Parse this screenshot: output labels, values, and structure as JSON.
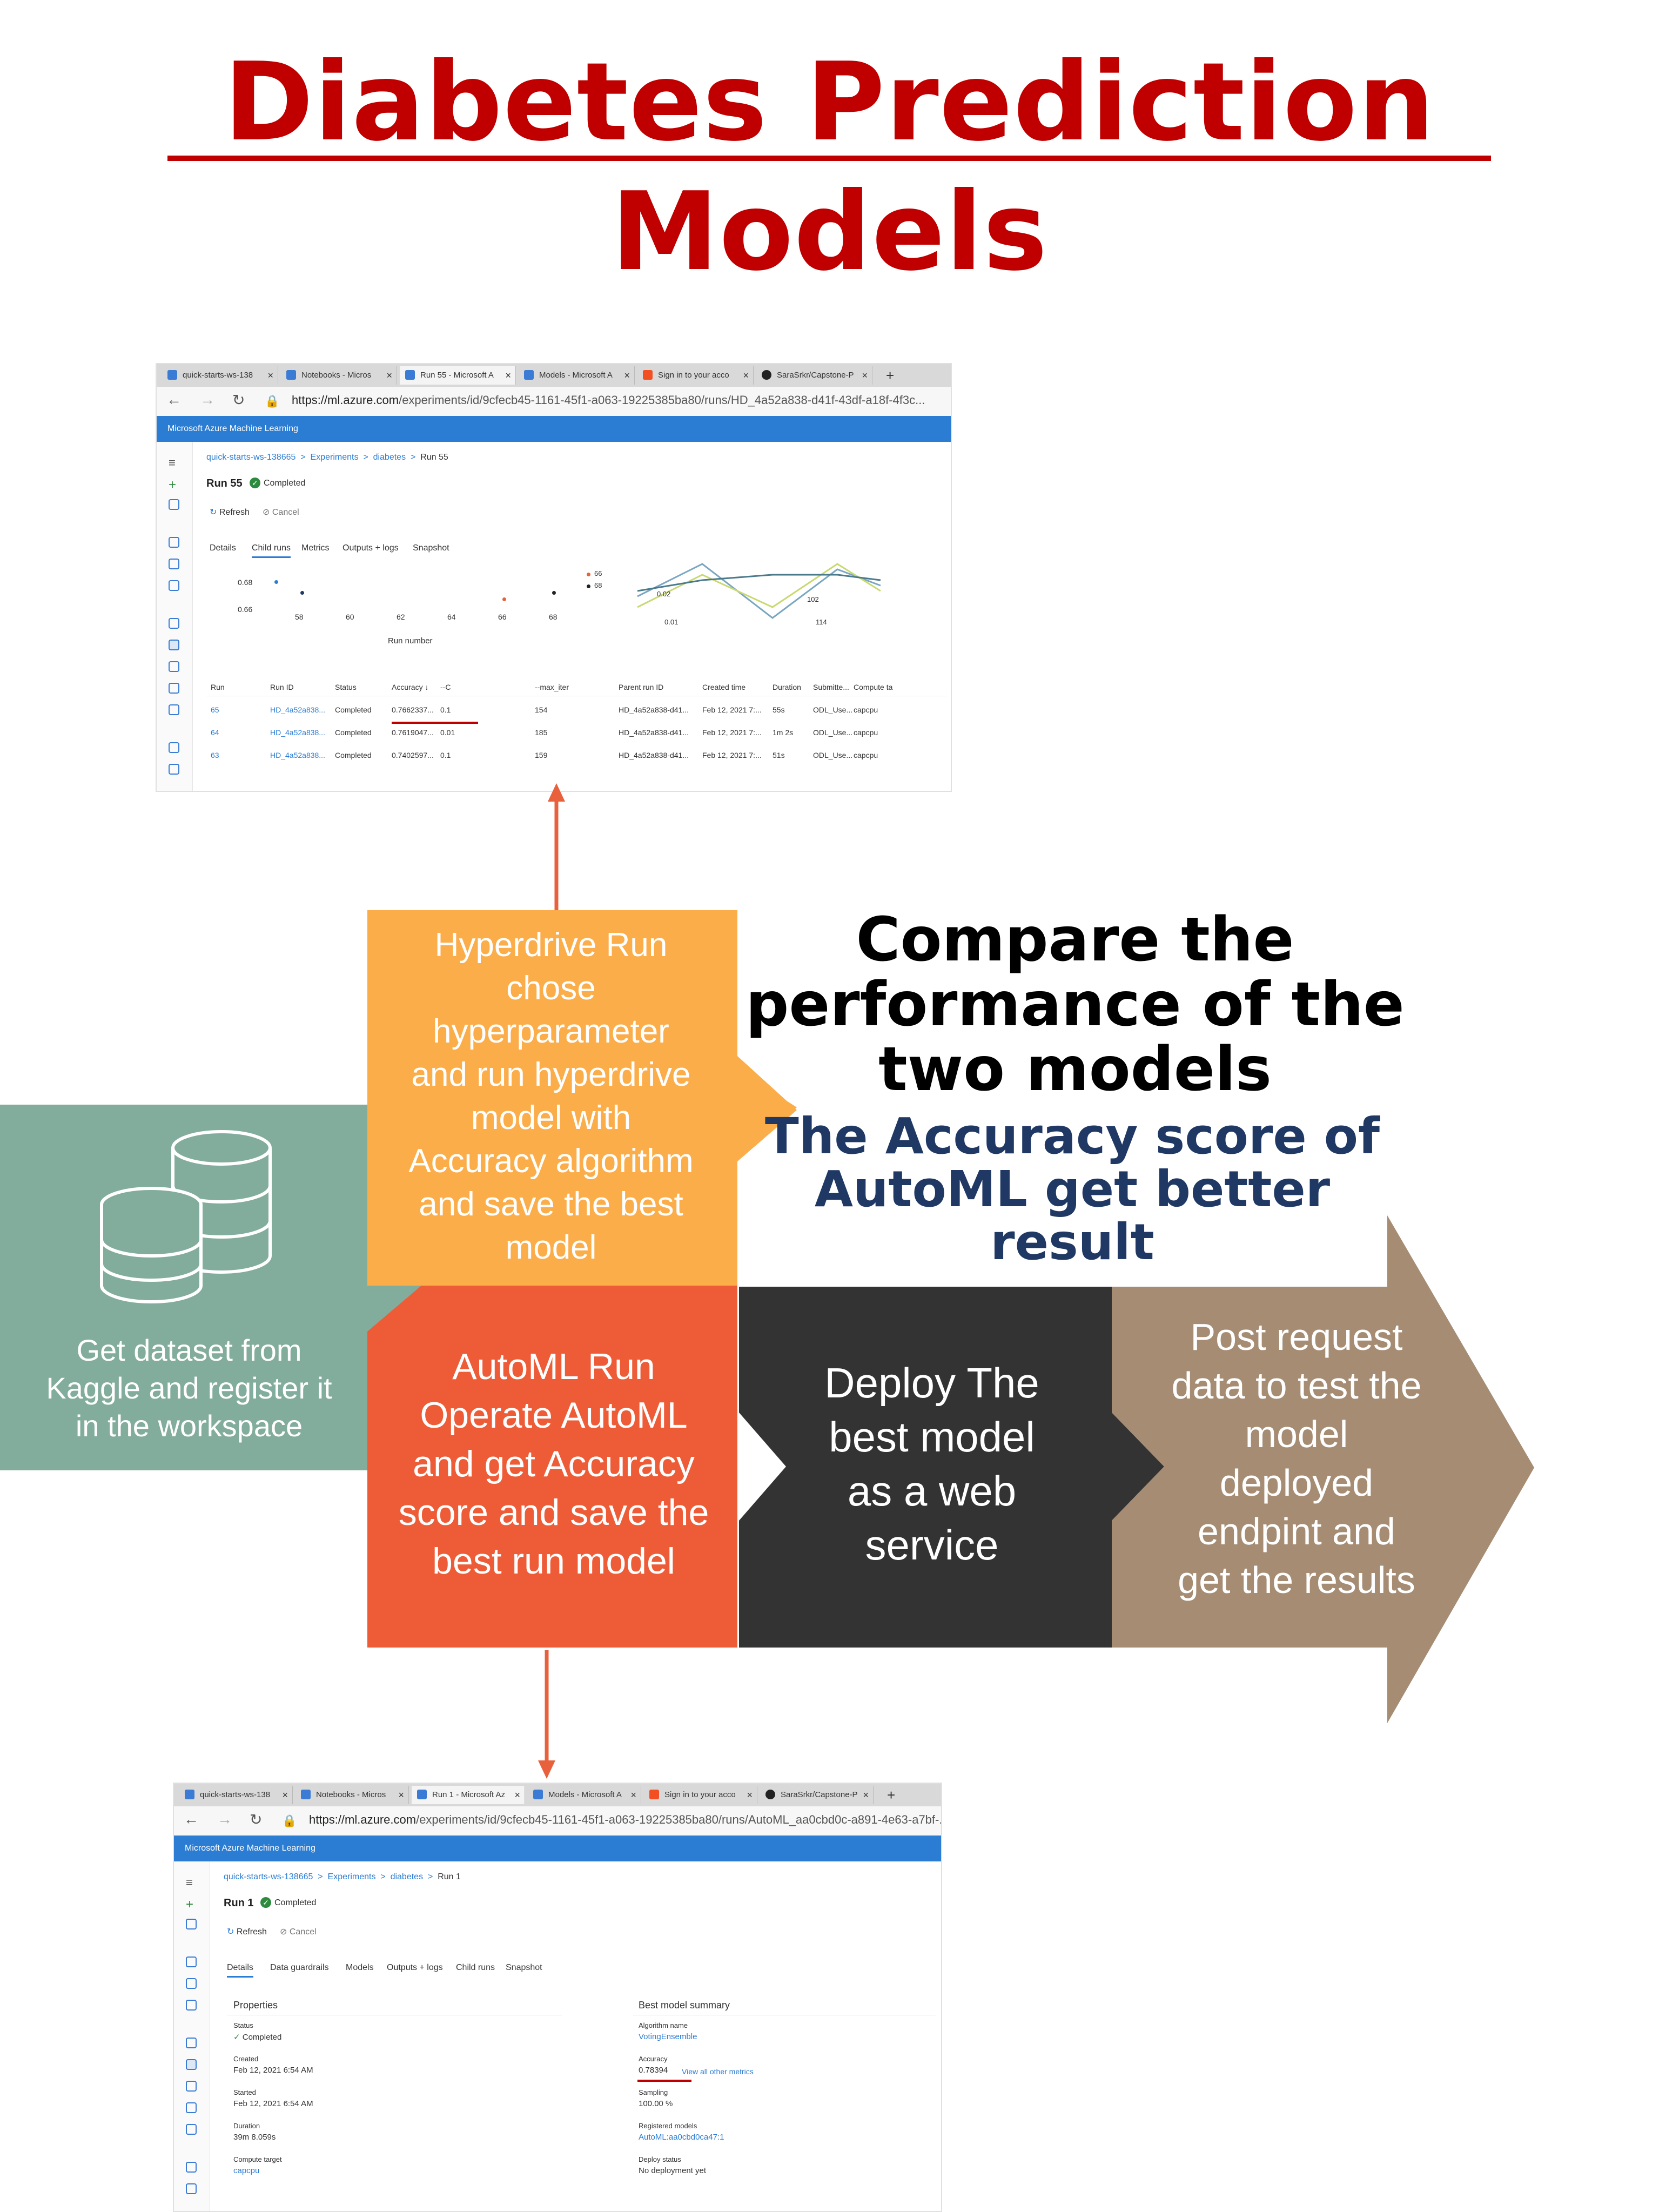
{
  "title": "Diabetes Prediction Models",
  "screenshot_top": {
    "tabs": [
      "quick-starts-ws-138",
      "Notebooks - Micros",
      "Run 55 - Microsoft A",
      "Models - Microsoft A",
      "Sign in to your acco",
      "SaraSrkr/Capstone-P"
    ],
    "url_host": "https://ml.azure.com",
    "url_path": "/experiments/id/9cfecb45-1161-45f1-a063-19225385ba80/runs/HD_4a52a838-d41f-43df-a18f-4f3c...",
    "app_name": "Microsoft Azure Machine Learning",
    "breadcrumb": [
      "quick-starts-ws-138665",
      "Experiments",
      "diabetes",
      "Run 55"
    ],
    "run_title": "Run 55",
    "status": "Completed",
    "refresh": "Refresh",
    "cancel": "Cancel",
    "subtabs": [
      "Details",
      "Child runs",
      "Metrics",
      "Outputs + logs",
      "Snapshot"
    ],
    "chart_yticks": [
      "0.68",
      "0.66"
    ],
    "chart_xticks": [
      "58",
      "60",
      "62",
      "64",
      "66",
      "68"
    ],
    "chart_xlabel": "Run number",
    "legend": [
      "66",
      "68"
    ],
    "line_ticks": [
      "0.02",
      "0.01",
      "114",
      "102"
    ],
    "columns": [
      "Run",
      "Run ID",
      "Status",
      "Accuracy ↓",
      "--C",
      "--max_iter",
      "Parent run ID",
      "Created time",
      "Duration",
      "Submitte...",
      "Compute ta"
    ],
    "rows": [
      [
        "65",
        "HD_4a52a838...",
        "Completed",
        "0.7662337...",
        "0.1",
        "154",
        "HD_4a52a838-d41...",
        "Feb 12, 2021 7:...",
        "55s",
        "ODL_Use...",
        "capcpu"
      ],
      [
        "64",
        "HD_4a52a838...",
        "Completed",
        "0.7619047...",
        "0.01",
        "185",
        "HD_4a52a838-d41...",
        "Feb 12, 2021 7:...",
        "1m 2s",
        "ODL_Use...",
        "capcpu"
      ],
      [
        "63",
        "HD_4a52a838...",
        "Completed",
        "0.7402597...",
        "0.1",
        "159",
        "HD_4a52a838-d41...",
        "Feb 12, 2021 7:...",
        "51s",
        "ODL_Use...",
        "capcpu"
      ]
    ]
  },
  "screenshot_bottom": {
    "tabs": [
      "quick-starts-ws-138",
      "Notebooks - Micros",
      "Run 1 - Microsoft Az",
      "Models - Microsoft A",
      "Sign in to your acco",
      "SaraSrkr/Capstone-P"
    ],
    "url_host": "https://ml.azure.com",
    "url_path": "/experiments/id/9cfecb45-1161-45f1-a063-19225385ba80/runs/AutoML_aa0cbd0c-a891-4e63-a7bf-...",
    "app_name": "Microsoft Azure Machine Learning",
    "breadcrumb": [
      "quick-starts-ws-138665",
      "Experiments",
      "diabetes",
      "Run 1"
    ],
    "run_title": "Run 1",
    "status": "Completed",
    "refresh": "Refresh",
    "cancel": "Cancel",
    "subtabs": [
      "Details",
      "Data guardrails",
      "Models",
      "Outputs + logs",
      "Child runs",
      "Snapshot"
    ],
    "properties_title": "Properties",
    "properties": [
      {
        "label": "Status",
        "value": "Completed"
      },
      {
        "label": "Created",
        "value": "Feb 12, 2021 6:54 AM"
      },
      {
        "label": "Started",
        "value": "Feb 12, 2021 6:54 AM"
      },
      {
        "label": "Duration",
        "value": "39m 8.059s"
      },
      {
        "label": "Compute target",
        "value": "capcpu"
      }
    ],
    "summary_title": "Best model summary",
    "summary": [
      {
        "label": "Algorithm name",
        "value": "VotingEnsemble"
      },
      {
        "label": "Accuracy",
        "value": "0.78394"
      },
      {
        "label": "Sampling",
        "value": "100.00 %"
      },
      {
        "label": "Registered models",
        "value": "AutoML:aa0cbd0ca47:1"
      },
      {
        "label": "Deploy status",
        "value": "No deployment yet"
      }
    ],
    "view_metrics": "View all other metrics"
  },
  "diagram": {
    "dataset": "Get dataset from\nKaggle and register it\nin the workspace",
    "hyperdrive": "Hyperdrive Run\nchose\nhyperparameter\nand run hyperdrive\nmodel with\nAccuracy algorithm\nand save the best\nmodel",
    "automl": "AutoML Run\nOperate AutoML\nand get Accuracy\nscore and save the\nbest run model",
    "deploy": "Deploy The\nbest model\nas a web\nservice",
    "post": "Post request\ndata to test the\nmodel\ndeployed\nendpint and\nget the results",
    "compare": "Compare the\nperformance of the\ntwo models",
    "conclusion": "The Accuracy score of\nAutoML get better result"
  },
  "colors": {
    "title": "#c00000",
    "dataset": "#82ac9b",
    "hyperdrive": "#fbad4a",
    "automl": "#ee5c37",
    "deploy": "#333333",
    "post": "#a58c73",
    "conclusion": "#1f3864",
    "arrow": "#e8603c"
  }
}
